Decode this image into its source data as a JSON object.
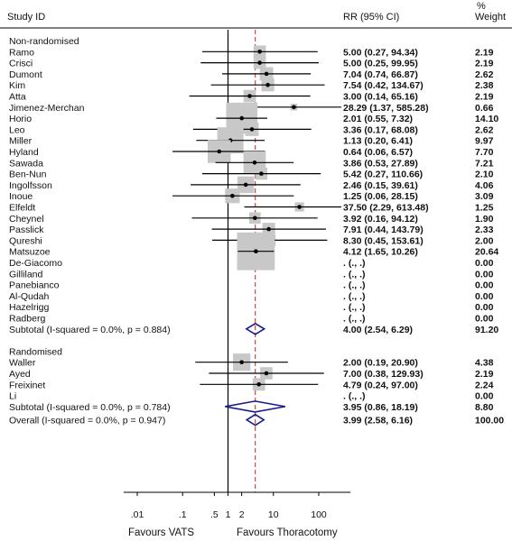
{
  "chart_data": {
    "type": "forest",
    "headers": {
      "study": "Study ID",
      "rr": "RR (95% CI)",
      "weight_pct": "%",
      "weight": "Weight"
    },
    "x_scale": "log",
    "xlim": [
      0.005,
      500
    ],
    "x_ticks": [
      {
        "value": 0.01,
        "label": ".01"
      },
      {
        "value": 0.1,
        "label": ".1"
      },
      {
        "value": 0.5,
        "label": ".5"
      },
      {
        "value": 1,
        "label": "1"
      },
      {
        "value": 2,
        "label": "2"
      },
      {
        "value": 10,
        "label": "10"
      },
      {
        "value": 100,
        "label": "100"
      }
    ],
    "null_line": 1,
    "overall_estimate_line": 3.99,
    "favours_left": "Favours VATS",
    "favours_right": "Favours Thoracotomy",
    "groups": [
      {
        "name": "Non-randomised",
        "studies": [
          {
            "study": "Ramo",
            "rr": 5.0,
            "lo": 0.27,
            "hi": 94.34,
            "text": "5.00 (0.27, 94.34)",
            "weight": "2.19"
          },
          {
            "study": "Crisci",
            "rr": 5.0,
            "lo": 0.25,
            "hi": 99.95,
            "text": "5.00 (0.25, 99.95)",
            "weight": "2.19"
          },
          {
            "study": "Dumont",
            "rr": 7.04,
            "lo": 0.74,
            "hi": 66.87,
            "text": "7.04 (0.74, 66.87)",
            "weight": "2.62"
          },
          {
            "study": "Kim",
            "rr": 7.54,
            "lo": 0.42,
            "hi": 134.67,
            "text": "7.54 (0.42, 134.67)",
            "weight": "2.38"
          },
          {
            "study": "Atta",
            "rr": 3.0,
            "lo": 0.14,
            "hi": 65.16,
            "text": "3.00 (0.14, 65.16)",
            "weight": "2.19"
          },
          {
            "study": "Jimenez-Merchan",
            "rr": 28.29,
            "lo": 1.37,
            "hi": 585.28,
            "text": "28.29 (1.37, 585.28)",
            "weight": "0.66"
          },
          {
            "study": "Horio",
            "rr": 2.01,
            "lo": 0.55,
            "hi": 7.32,
            "text": "2.01 (0.55, 7.32)",
            "weight": "14.10"
          },
          {
            "study": "Leo",
            "rr": 3.36,
            "lo": 0.17,
            "hi": 68.08,
            "text": "3.36 (0.17, 68.08)",
            "weight": "2.62"
          },
          {
            "study": "Miller",
            "rr": 1.13,
            "lo": 0.2,
            "hi": 6.41,
            "text": "1.13 (0.20, 6.41)",
            "weight": "9.97"
          },
          {
            "study": "Hyland",
            "rr": 0.64,
            "lo": 0.06,
            "hi": 6.57,
            "text": "0.64 (0.06, 6.57)",
            "weight": "7.70"
          },
          {
            "study": "Sawada",
            "rr": 3.86,
            "lo": 0.53,
            "hi": 27.89,
            "text": "3.86 (0.53, 27.89)",
            "weight": "7.21"
          },
          {
            "study": "Ben-Nun",
            "rr": 5.42,
            "lo": 0.27,
            "hi": 110.66,
            "text": "5.42 (0.27, 110.66)",
            "weight": "2.10"
          },
          {
            "study": "Ingolfsson",
            "rr": 2.46,
            "lo": 0.15,
            "hi": 39.61,
            "text": "2.46 (0.15, 39.61)",
            "weight": "4.06"
          },
          {
            "study": "Inoue",
            "rr": 1.25,
            "lo": 0.06,
            "hi": 28.15,
            "text": "1.25 (0.06, 28.15)",
            "weight": "3.09"
          },
          {
            "study": "Elfeldt",
            "rr": 37.5,
            "lo": 2.29,
            "hi": 613.48,
            "text": "37.50 (2.29, 613.48)",
            "weight": "1.25"
          },
          {
            "study": "Cheynel",
            "rr": 3.92,
            "lo": 0.16,
            "hi": 94.12,
            "text": "3.92 (0.16, 94.12)",
            "weight": "1.90"
          },
          {
            "study": "Passlick",
            "rr": 7.91,
            "lo": 0.44,
            "hi": 143.79,
            "text": "7.91 (0.44, 143.79)",
            "weight": "2.33"
          },
          {
            "study": "Qureshi",
            "rr": 8.3,
            "lo": 0.45,
            "hi": 153.61,
            "text": "8.30 (0.45, 153.61)",
            "weight": "2.00"
          },
          {
            "study": "Matsuzoe",
            "rr": 4.12,
            "lo": 1.65,
            "hi": 10.26,
            "text": "4.12 (1.65, 10.26)",
            "weight": "20.64"
          },
          {
            "study": "De-Giacomo",
            "rr": null,
            "lo": null,
            "hi": null,
            "text": ". (., .)",
            "weight": "0.00"
          },
          {
            "study": "Gilliland",
            "rr": null,
            "lo": null,
            "hi": null,
            "text": ". (., .)",
            "weight": "0.00"
          },
          {
            "study": "Panebianco",
            "rr": null,
            "lo": null,
            "hi": null,
            "text": ". (., .)",
            "weight": "0.00"
          },
          {
            "study": "Al-Qudah",
            "rr": null,
            "lo": null,
            "hi": null,
            "text": ". (., .)",
            "weight": "0.00"
          },
          {
            "study": "Hazelrigg",
            "rr": null,
            "lo": null,
            "hi": null,
            "text": ". (., .)",
            "weight": "0.00"
          },
          {
            "study": "Radberg",
            "rr": null,
            "lo": null,
            "hi": null,
            "text": ". (., .)",
            "weight": "0.00"
          }
        ],
        "subtotal": {
          "label": "Subtotal  (I-squared = 0.0%, p = 0.884)",
          "rr": 4.0,
          "lo": 2.54,
          "hi": 6.29,
          "text": "4.00 (2.54, 6.29)",
          "weight": "91.20"
        }
      },
      {
        "name": "Randomised",
        "studies": [
          {
            "study": "Waller",
            "rr": 2.0,
            "lo": 0.19,
            "hi": 20.9,
            "text": "2.00 (0.19, 20.90)",
            "weight": "4.38"
          },
          {
            "study": "Ayed",
            "rr": 7.0,
            "lo": 0.38,
            "hi": 129.93,
            "text": "7.00 (0.38, 129.93)",
            "weight": "2.19"
          },
          {
            "study": "Freixinet",
            "rr": 4.79,
            "lo": 0.24,
            "hi": 97.0,
            "text": "4.79 (0.24, 97.00)",
            "weight": "2.24"
          },
          {
            "study": "Li",
            "rr": null,
            "lo": null,
            "hi": null,
            "text": ". (., .)",
            "weight": "0.00"
          }
        ],
        "subtotal": {
          "label": "Subtotal  (I-squared = 0.0%, p = 0.784)",
          "rr": 3.95,
          "lo": 0.86,
          "hi": 18.19,
          "text": "3.95 (0.86, 18.19)",
          "weight": "8.80"
        }
      }
    ],
    "overall": {
      "label": "Overall  (I-squared = 0.0%, p = 0.947)",
      "rr": 3.99,
      "lo": 2.58,
      "hi": 6.16,
      "text": "3.99 (2.58, 6.16)",
      "weight": "100.00"
    },
    "colors": {
      "box": "#c8c8c8",
      "diamond": "#1a1a8c",
      "estimate_line": "#c0392b",
      "line": "#000000"
    }
  }
}
